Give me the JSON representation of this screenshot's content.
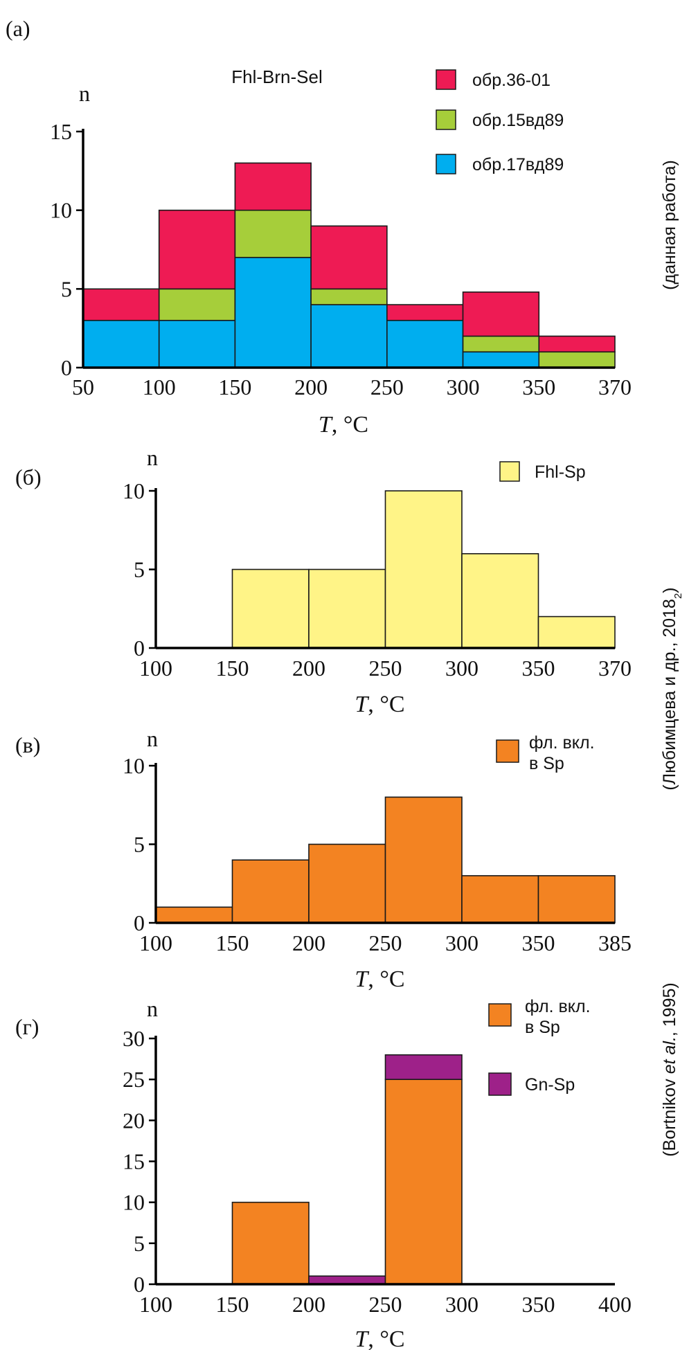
{
  "colors": {
    "red": "#EE1B54",
    "green": "#A6CE3A",
    "blue": "#00AEEF",
    "yellow": "#FFF487",
    "orange": "#F38322",
    "purple": "#9E2189"
  },
  "side_labels": {
    "a": "(данная работа)",
    "b_c": "(Любимцева и др., 2018",
    "b_c_sub": "2",
    "b_c_end": ")",
    "d_pre": "(Bortnikov ",
    "d_italic": "et al.",
    "d_post": ", 1995)"
  },
  "chart_data": [
    {
      "id": "a",
      "type": "bar",
      "stacked": true,
      "panel_label": "(а)",
      "title": "Fhl-Brn-Sel",
      "ylabel": "n",
      "xlabel_symbol": "T",
      "xlabel_unit": "°C",
      "bin_edges": [
        50,
        100,
        150,
        200,
        250,
        300,
        350,
        370
      ],
      "xticks": [
        "50",
        "100",
        "150",
        "200",
        "250",
        "300",
        "350",
        "370"
      ],
      "yticks": [
        0,
        5,
        10,
        15
      ],
      "ylim": [
        0,
        15
      ],
      "series": [
        {
          "name": "обр.17вд89",
          "color_key": "blue",
          "values": [
            3,
            3,
            7,
            4,
            3,
            1,
            0
          ]
        },
        {
          "name": "обр.15вд89",
          "color_key": "green",
          "values": [
            0,
            2,
            3,
            1,
            0,
            1,
            1
          ]
        },
        {
          "name": "обр.36-01",
          "color_key": "red",
          "values": [
            2,
            5,
            3,
            4,
            1,
            2.8,
            1
          ]
        }
      ],
      "legend_order": [
        "обр.36-01",
        "обр.15вд89",
        "обр.17вд89"
      ]
    },
    {
      "id": "b",
      "type": "bar",
      "stacked": false,
      "panel_label": "(б)",
      "ylabel": "n",
      "xlabel_symbol": "T",
      "xlabel_unit": "°C",
      "bin_edges": [
        100,
        150,
        200,
        250,
        300,
        350,
        370
      ],
      "xticks": [
        "100",
        "150",
        "200",
        "250",
        "300",
        "350",
        "370"
      ],
      "yticks": [
        0,
        5,
        10
      ],
      "ylim": [
        0,
        10
      ],
      "series": [
        {
          "name": "Fhl-Sp",
          "color_key": "yellow",
          "values": [
            0,
            5,
            5,
            10,
            6,
            2
          ]
        }
      ],
      "legend_order": [
        "Fhl-Sp"
      ]
    },
    {
      "id": "c",
      "type": "bar",
      "stacked": false,
      "panel_label": "(в)",
      "ylabel": "n",
      "xlabel_symbol": "T",
      "xlabel_unit": "°C",
      "bin_edges": [
        100,
        150,
        200,
        250,
        300,
        350,
        385
      ],
      "xticks": [
        "100",
        "150",
        "200",
        "250",
        "300",
        "350",
        "385"
      ],
      "yticks": [
        0,
        5,
        10
      ],
      "ylim": [
        0,
        10
      ],
      "series": [
        {
          "name": "фл. вкл.\nв Sp",
          "color_key": "orange",
          "values": [
            1,
            4,
            5,
            8,
            3,
            3
          ]
        }
      ],
      "legend_order": [
        "фл. вкл.\nв Sp"
      ]
    },
    {
      "id": "d",
      "type": "bar",
      "stacked": true,
      "panel_label": "(г)",
      "ylabel": "n",
      "xlabel_symbol": "T",
      "xlabel_unit": "°C",
      "bin_edges": [
        100,
        150,
        200,
        250,
        300,
        350,
        400
      ],
      "xticks": [
        "100",
        "150",
        "200",
        "250",
        "300",
        "350",
        "400"
      ],
      "yticks": [
        0,
        5,
        10,
        15,
        20,
        25,
        30
      ],
      "ylim": [
        0,
        30
      ],
      "series": [
        {
          "name": "фл. вкл.\nв Sp",
          "color_key": "orange",
          "values": [
            0,
            10,
            0,
            25,
            0,
            0
          ]
        },
        {
          "name": "Gn-Sp",
          "color_key": "purple",
          "values": [
            0,
            0,
            1,
            3,
            0,
            0
          ]
        }
      ],
      "legend_order": [
        "фл. вкл.\nв Sp",
        "Gn-Sp"
      ]
    }
  ]
}
